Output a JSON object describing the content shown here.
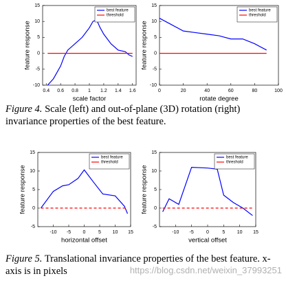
{
  "chart_data": [
    {
      "type": "line",
      "xlabel": "scale factor",
      "ylabel": "feature response",
      "xlim": [
        0.35,
        1.65
      ],
      "xticks": [
        0.4,
        0.6,
        0.8,
        1,
        1.2,
        1.4,
        1.6
      ],
      "ylim": [
        -10,
        15
      ],
      "yticks": [
        -10,
        -5,
        0,
        5,
        10,
        15
      ],
      "series": [
        {
          "name": "best feature",
          "color": "#0000ff",
          "style": "solid",
          "x": [
            0.42,
            0.5,
            0.55,
            0.6,
            0.65,
            0.7,
            0.8,
            0.9,
            1.0,
            1.05,
            1.1,
            1.15,
            1.2,
            1.3,
            1.4,
            1.5,
            1.55,
            1.6
          ],
          "values": [
            -10,
            -8,
            -6,
            -4,
            -1,
            1,
            3,
            5,
            8,
            10,
            10.5,
            8,
            6,
            3,
            1,
            0.5,
            -0.5,
            -1
          ]
        },
        {
          "name": "threshold",
          "color": "#ff0000",
          "style": "solid",
          "x": [
            0.42,
            1.6
          ],
          "values": [
            0,
            0
          ]
        }
      ]
    },
    {
      "type": "line",
      "xlabel": "rotate degree",
      "ylabel": "feature response",
      "xlim": [
        0,
        100
      ],
      "xticks": [
        0,
        20,
        40,
        60,
        80,
        100
      ],
      "ylim": [
        -10,
        15
      ],
      "yticks": [
        -10,
        -5,
        0,
        5,
        10,
        15
      ],
      "series": [
        {
          "name": "best feature",
          "color": "#0000ff",
          "style": "solid",
          "x": [
            0,
            10,
            20,
            30,
            40,
            50,
            60,
            70,
            80,
            90
          ],
          "values": [
            11,
            9,
            7,
            6.5,
            6,
            5.5,
            4.5,
            4.5,
            3,
            1
          ]
        },
        {
          "name": "threshold",
          "color": "#ff0000",
          "style": "solid",
          "x": [
            0,
            90
          ],
          "values": [
            0,
            0
          ]
        }
      ]
    },
    {
      "type": "line",
      "xlabel": "horizontal offset",
      "ylabel": "feature response",
      "xlim": [
        -15,
        15
      ],
      "xticks": [
        -10,
        -5,
        0,
        5,
        10,
        15
      ],
      "ylim": [
        -5,
        15
      ],
      "yticks": [
        -5,
        0,
        5,
        10,
        15
      ],
      "series": [
        {
          "name": "best feature",
          "color": "#0000ff",
          "style": "solid",
          "x": [
            -14,
            -10,
            -7,
            -5,
            -2,
            0,
            3,
            6,
            10,
            13,
            14
          ],
          "values": [
            0,
            4.5,
            6,
            6.3,
            8,
            10.3,
            7,
            3.8,
            3.3,
            0.5,
            -1.5
          ]
        },
        {
          "name": "threshold",
          "color": "#ff0000",
          "style": "dashed",
          "x": [
            -14,
            14
          ],
          "values": [
            0,
            0
          ]
        }
      ]
    },
    {
      "type": "line",
      "xlabel": "vertical offset",
      "ylabel": "feature response",
      "xlim": [
        -15,
        15
      ],
      "xticks": [
        -10,
        -5,
        0,
        5,
        10,
        15
      ],
      "ylim": [
        -5,
        15
      ],
      "yticks": [
        -5,
        0,
        5,
        10,
        15
      ],
      "series": [
        {
          "name": "best feature",
          "color": "#0000ff",
          "style": "solid",
          "x": [
            -14,
            -12,
            -9,
            -5,
            0,
            3,
            5,
            8,
            11,
            14
          ],
          "values": [
            -1,
            2.5,
            1,
            11,
            10.8,
            10.5,
            3.5,
            1.5,
            0,
            -2
          ]
        },
        {
          "name": "threshold",
          "color": "#ff0000",
          "style": "dashed",
          "x": [
            -14,
            14
          ],
          "values": [
            0,
            0
          ]
        }
      ]
    }
  ],
  "captions": [
    {
      "label": "Figure 4.",
      "text": "Scale (left) and out-of-plane (3D) rotation (right) invariance properties of the best feature."
    },
    {
      "label": "Figure 5.",
      "text": "Translational invariance properties of the best feature. x-axis is in pixels"
    }
  ],
  "watermark": "https://blog.csdn.net/weixin_37993251"
}
